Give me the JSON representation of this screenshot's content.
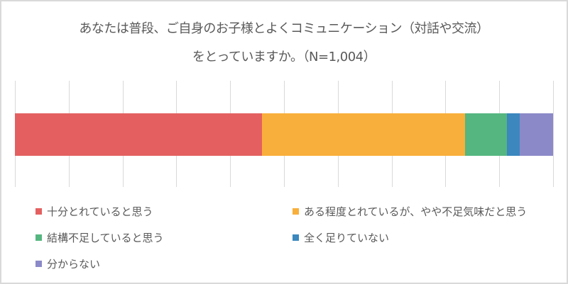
{
  "chart_data": {
    "type": "bar",
    "orientation": "horizontal",
    "stacked": "100%",
    "title": "あなたは普段、ご自身のお子様とよくコミュニケーション（対話や交流）をとっていますか。（N=1,004）",
    "title_lines": [
      "あなたは普段、ご自身のお子様とよくコミュニケーション（対話や交流）",
      "をとっていますか。（N=1,004）"
    ],
    "categories": [
      ""
    ],
    "series": [
      {
        "name": "十分とれていると思う",
        "values": [
          45.9
        ],
        "color": "#E46060"
      },
      {
        "name": "ある程度とれているが、やや不足気味だと思う",
        "values": [
          37.7
        ],
        "color": "#F9AF3B"
      },
      {
        "name": "結構不足していると思う",
        "values": [
          7.8
        ],
        "color": "#55B680"
      },
      {
        "name": "全く足りていない",
        "values": [
          2.4
        ],
        "color": "#3B87BE"
      },
      {
        "name": "分からない",
        "values": [
          6.2
        ],
        "color": "#8B89C8"
      }
    ],
    "xlim": [
      0,
      100
    ],
    "x_gridlines": [
      0,
      10,
      20,
      30,
      40,
      50,
      60,
      70,
      80,
      90,
      100
    ],
    "grid": true,
    "axis_labels_visible": false,
    "legend_position": "bottom",
    "xlabel": "",
    "ylabel": ""
  },
  "legend": [
    {
      "label": "十分とれていると思う",
      "color": "#E46060"
    },
    {
      "label": "ある程度とれているが、やや不足気味だと思う",
      "color": "#F9AF3B"
    },
    {
      "label": "結構不足していると思う",
      "color": "#55B680"
    },
    {
      "label": "全く足りていない",
      "color": "#3B87BE"
    },
    {
      "label": "分からない",
      "color": "#8B89C8"
    }
  ]
}
